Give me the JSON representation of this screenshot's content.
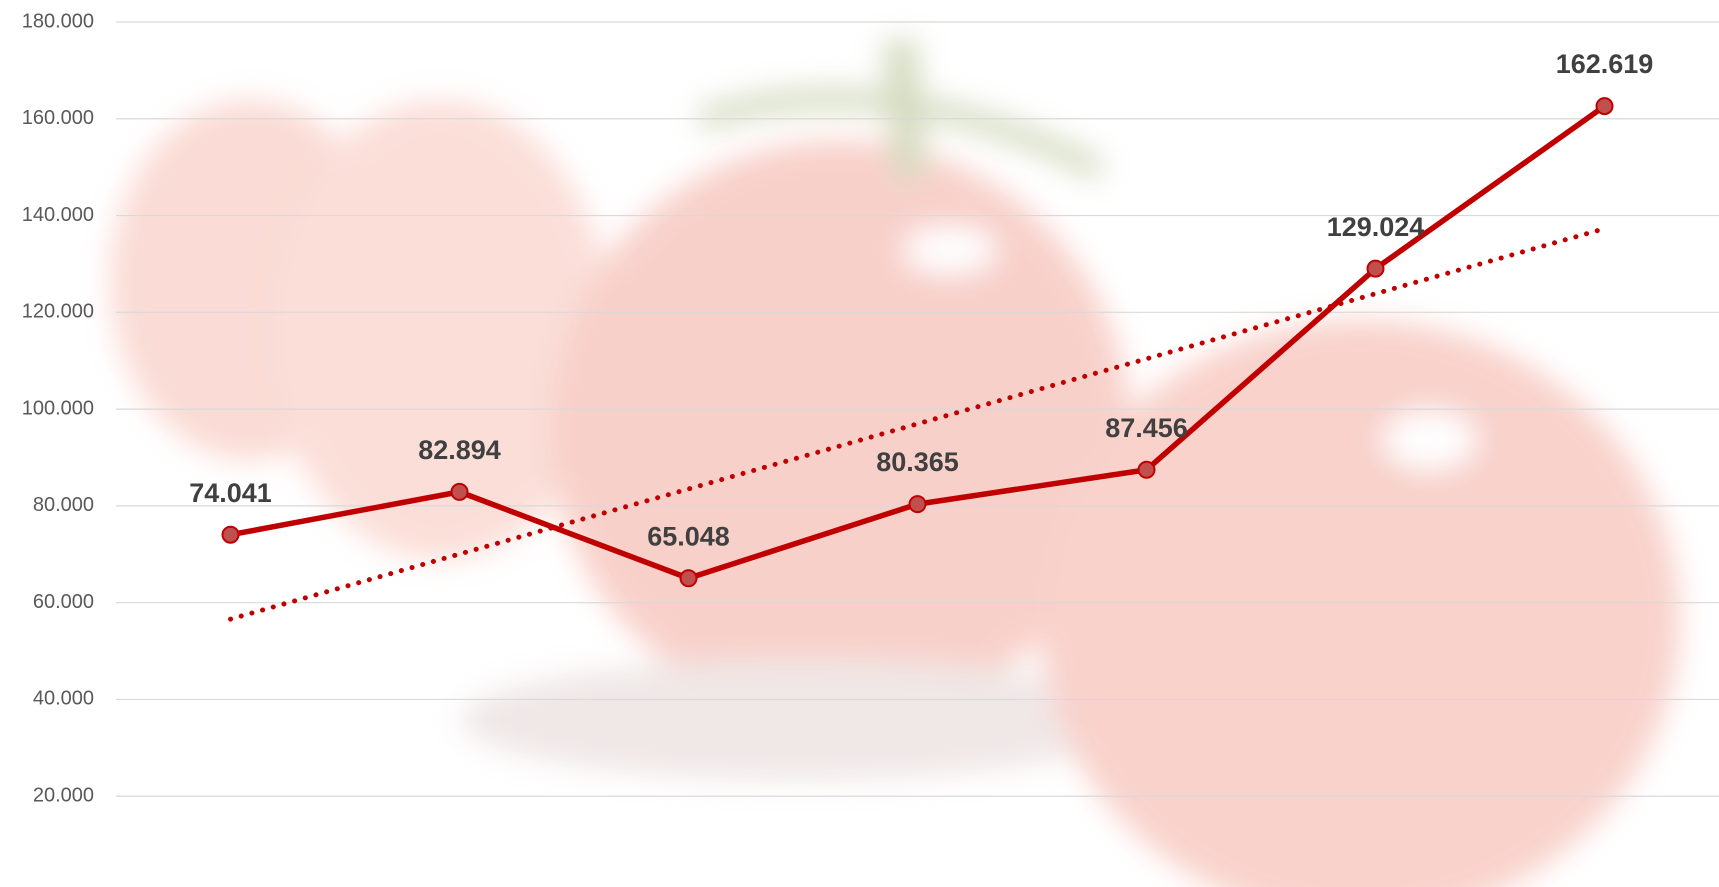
{
  "chart_data": {
    "type": "line",
    "categories": [
      null,
      null,
      null,
      null,
      null,
      null,
      null
    ],
    "series": [
      {
        "color": "#c00000",
        "values": [
          74041,
          82894,
          65048,
          80365,
          87456,
          129024,
          162619
        ],
        "value_labels": [
          "74.041",
          "82.894",
          "65.048",
          "80.365",
          "87.456",
          "129.024",
          "162.619"
        ]
      }
    ],
    "trendline": {
      "color": "#c00000",
      "style": "dotted",
      "values": [
        56600,
        70050,
        83500,
        96950,
        110400,
        123850,
        137300
      ]
    },
    "ylim": [
      0,
      180000
    ],
    "yticks": [
      {
        "value": 20000,
        "label": "20.000"
      },
      {
        "value": 40000,
        "label": "40.000"
      },
      {
        "value": 60000,
        "label": "60.000"
      },
      {
        "value": 80000,
        "label": "80.000"
      },
      {
        "value": 100000,
        "label": "100.000"
      },
      {
        "value": 120000,
        "label": "120.000"
      },
      {
        "value": 140000,
        "label": "140.000"
      },
      {
        "value": 160000,
        "label": "160.000"
      },
      {
        "value": 180000,
        "label": "180.000"
      }
    ],
    "grid": true
  }
}
